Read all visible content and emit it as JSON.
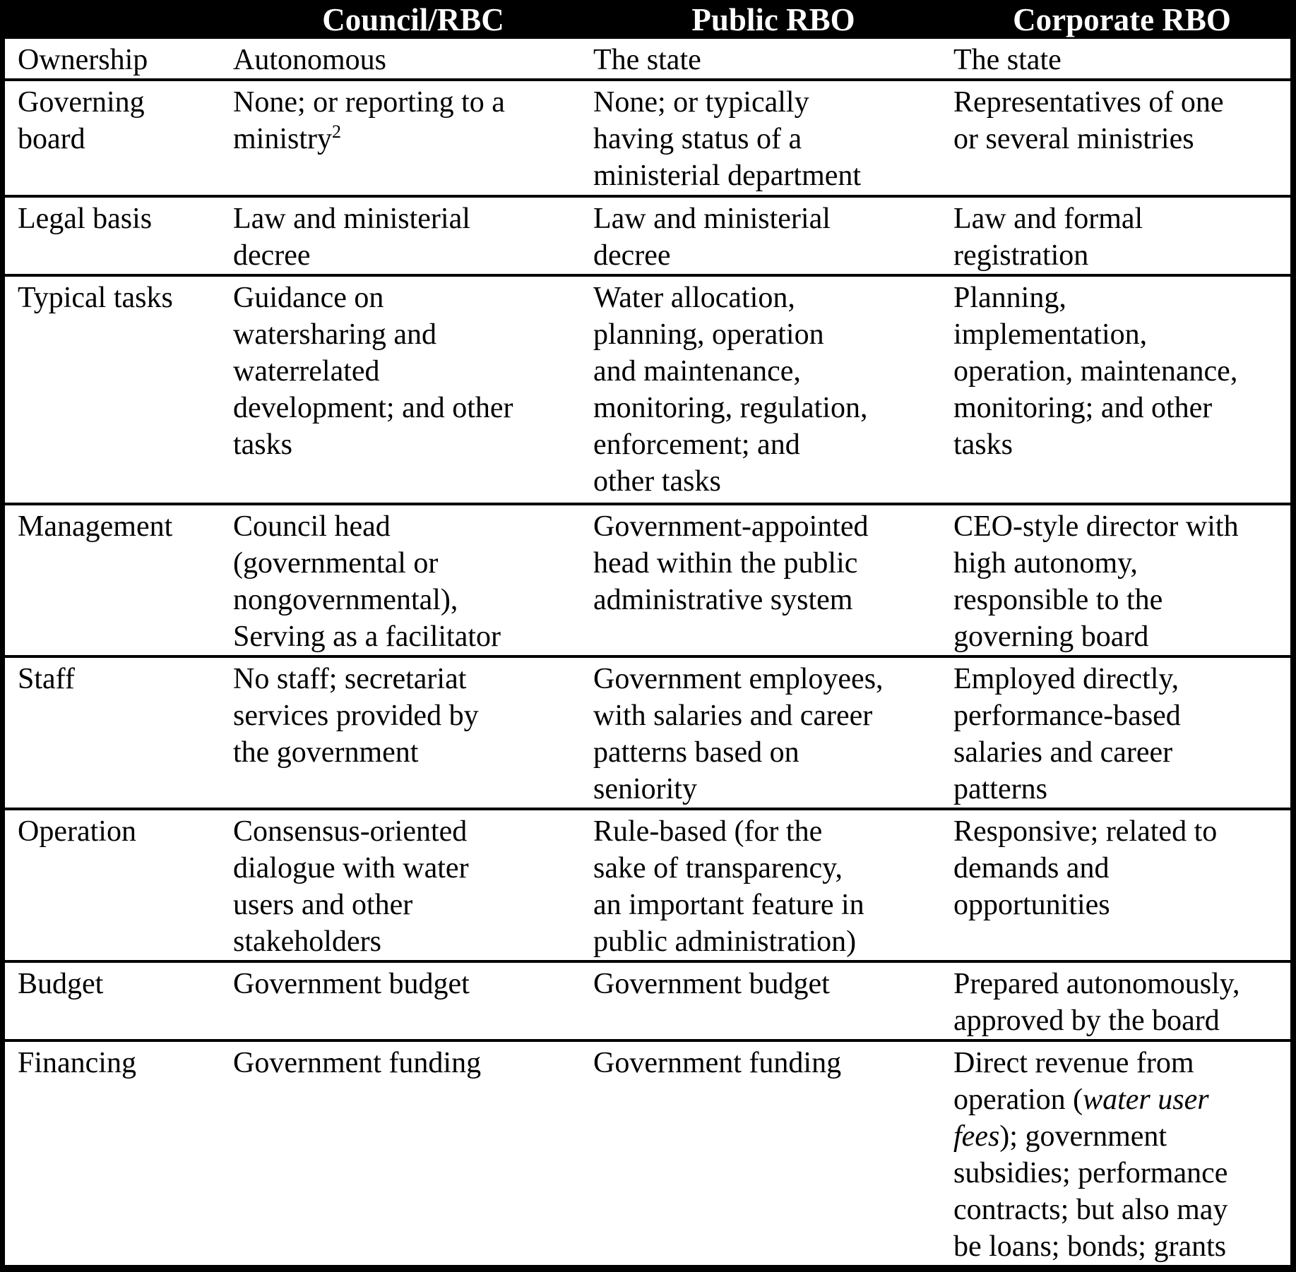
{
  "colors": {
    "header_bg": "#000000",
    "header_text": "#ffffff",
    "body_text": "#000000",
    "background": "#ffffff"
  },
  "table": {
    "header": [
      "",
      "Council/RBC",
      "Public RBO",
      "Corporate RBO"
    ],
    "rows": [
      {
        "label": "Ownership",
        "council": "Autonomous",
        "public": "The state",
        "corporate": "The state"
      },
      {
        "label": "Governing\nboard",
        "council_main": "None; or reporting to a\nministry",
        "council_sup": "2",
        "public": "None; or typically\nhaving status of a\nministerial department",
        "corporate": "Representatives of one\nor several ministries"
      },
      {
        "label": "Legal basis",
        "council": "Law and ministerial\ndecree",
        "public": "Law and ministerial\ndecree",
        "corporate": "Law and formal\nregistration"
      },
      {
        "label": "Typical tasks",
        "council": "Guidance on\nwatersharing and\nwaterrelated\ndevelopment; and other\ntasks",
        "public": "Water allocation,\nplanning, operation\nand maintenance,\nmonitoring, regulation,\nenforcement; and\nother tasks",
        "corporate": "Planning,\nimplementation,\noperation, maintenance,\nmonitoring; and other\ntasks"
      },
      {
        "label": "Management",
        "council": "Council head\n(governmental or\nnongovernmental),\nServing as a facilitator",
        "public": "Government-appointed\nhead within the public\nadministrative system",
        "corporate": "CEO-style director with\nhigh autonomy,\nresponsible to the\ngoverning board"
      },
      {
        "label": "Staff",
        "council": "No staff; secretariat\nservices provided by\nthe government",
        "public": "Government employees,\nwith salaries and career\npatterns based on\nseniority",
        "corporate": "Employed directly,\nperformance-based\nsalaries and career\npatterns"
      },
      {
        "label": "Operation",
        "council": "Consensus-oriented\ndialogue with water\nusers and other\nstakeholders",
        "public": "Rule-based (for the\nsake of transparency,\nan important feature in\npublic administration)",
        "corporate": "Responsive; related to\ndemands and\nopportunities"
      },
      {
        "label": "Budget",
        "council": "Government budget",
        "public": "Government budget",
        "corporate": "Prepared autonomously,\napproved by the board"
      },
      {
        "label": "Financing",
        "council": "Government funding",
        "public": "Government funding",
        "corporate_pre": "Direct revenue from\noperation (",
        "corporate_italic": "water user\nfees",
        "corporate_post": "); government\nsubsidies; performance\ncontracts; but also may\nbe loans; bonds; grants"
      }
    ]
  }
}
